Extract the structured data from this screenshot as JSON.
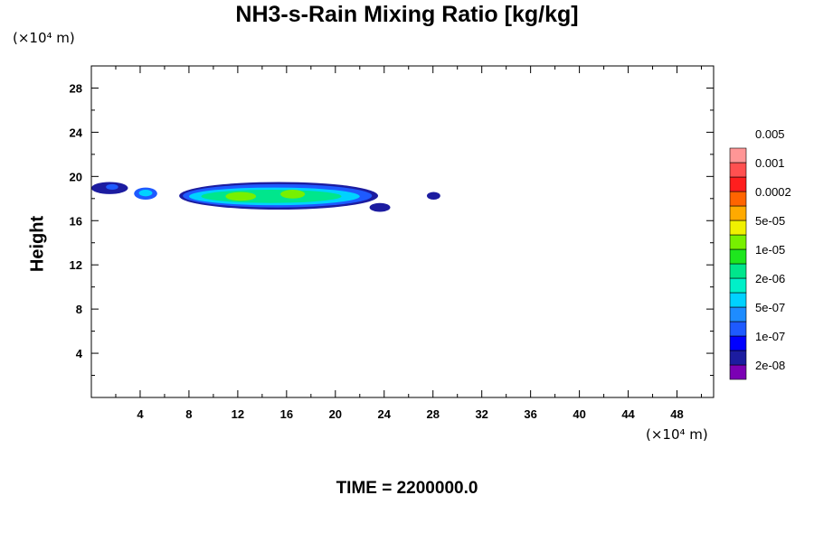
{
  "chart_data": {
    "type": "heatmap",
    "title": "NH3-s-Rain Mixing Ratio [kg/kg]",
    "ylabel": "Height",
    "x_unit": "(×10⁴ m)",
    "y_unit": "(×10⁴ m)",
    "xlim": [
      0,
      51
    ],
    "ylim": [
      0,
      30
    ],
    "x_ticks": [
      4,
      8,
      12,
      16,
      20,
      24,
      28,
      32,
      36,
      40,
      44,
      48
    ],
    "y_ticks": [
      4,
      8,
      12,
      16,
      20,
      24,
      28
    ],
    "grid": false,
    "legend_position": "right",
    "colorbar": {
      "colors": [
        "#7b00b4",
        "#1c1ca0",
        "#0000ff",
        "#1e5aff",
        "#1e8cff",
        "#00d2ff",
        "#00f0c8",
        "#00e68c",
        "#1ee61e",
        "#78f000",
        "#f0f000",
        "#ffaa00",
        "#ff6400",
        "#ff1e1e",
        "#ff5050",
        "#ff9696"
      ],
      "labels": [
        "2e-08",
        "1e-07",
        "5e-07",
        "2e-06",
        "1e-05",
        "5e-05",
        "0.0002",
        "0.001",
        "0.005"
      ]
    },
    "regions": [
      {
        "x": [
          0,
          3
        ],
        "y": [
          18.4,
          19.5
        ],
        "value": "2e-08"
      },
      {
        "x": [
          1.2,
          2.2
        ],
        "y": [
          18.8,
          19.3
        ],
        "value": "1e-07"
      },
      {
        "x": [
          3.5,
          5.4
        ],
        "y": [
          17.9,
          19.0
        ],
        "value": "1e-07"
      },
      {
        "x": [
          3.9,
          5.0
        ],
        "y": [
          18.2,
          18.8
        ],
        "value": "5e-07"
      },
      {
        "x": [
          7.2,
          23.5
        ],
        "y": [
          17.0,
          19.5
        ],
        "value": "2e-08"
      },
      {
        "x": [
          7.5,
          23.0
        ],
        "y": [
          17.2,
          19.3
        ],
        "value": "1e-07"
      },
      {
        "x": [
          8.0,
          22.0
        ],
        "y": [
          17.4,
          19.0
        ],
        "value": "5e-07"
      },
      {
        "x": [
          9.0,
          20.5
        ],
        "y": [
          17.6,
          18.8
        ],
        "value": "2e-06"
      },
      {
        "x": [
          11.0,
          13.5
        ],
        "y": [
          17.8,
          18.6
        ],
        "value": "1e-05"
      },
      {
        "x": [
          15.5,
          17.5
        ],
        "y": [
          18.0,
          18.8
        ],
        "value": "1e-05"
      },
      {
        "x": [
          22.8,
          24.5
        ],
        "y": [
          16.8,
          17.6
        ],
        "value": "2e-08"
      },
      {
        "x": [
          27.5,
          28.6
        ],
        "y": [
          17.9,
          18.6
        ],
        "value": "2e-08"
      }
    ]
  },
  "time_label": "TIME =",
  "time_value": "2200000.0"
}
